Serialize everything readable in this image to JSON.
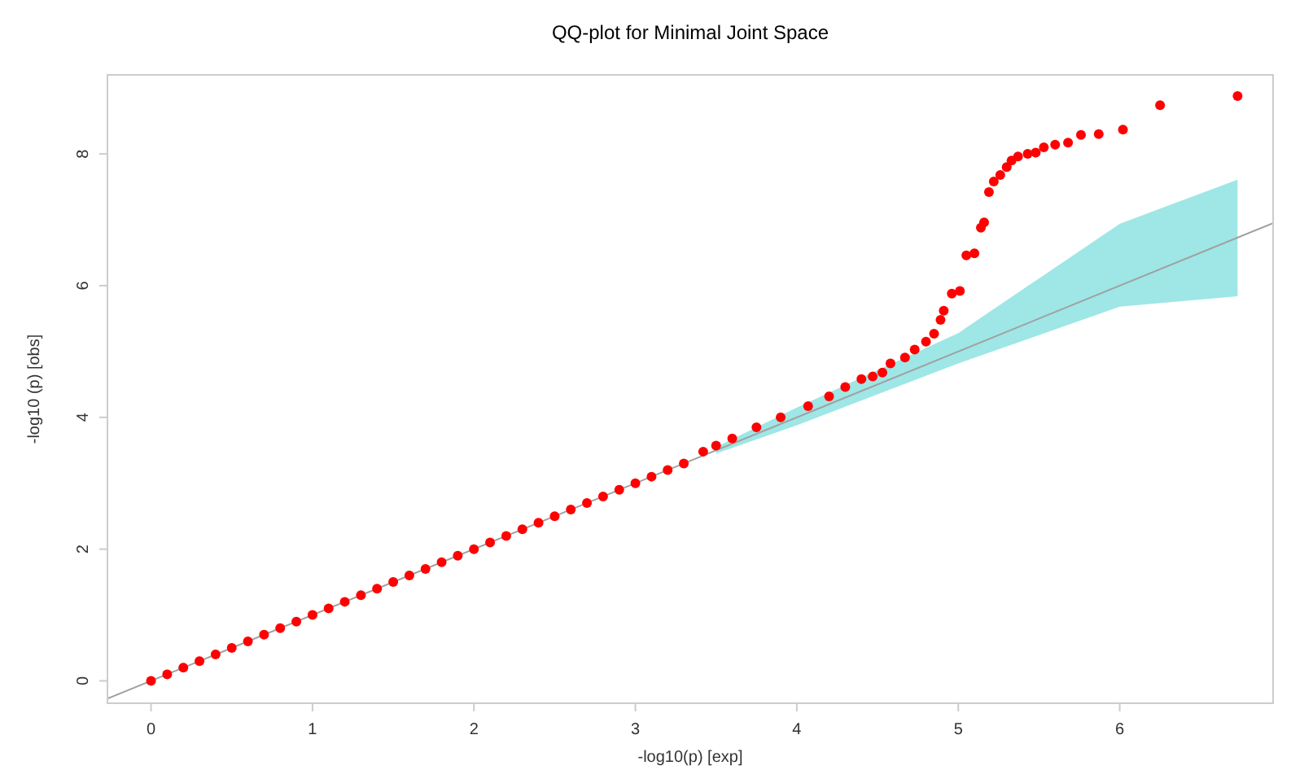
{
  "chart_data": {
    "type": "scatter",
    "title": "QQ-plot for Minimal Joint Space",
    "xlabel": "-log10(p) [exp]",
    "ylabel": "-log10 (p) [obs]",
    "xlim": [
      -0.27,
      6.95
    ],
    "ylim": [
      -0.34,
      9.2
    ],
    "xticks": [
      0,
      1,
      2,
      3,
      4,
      5,
      6
    ],
    "yticks": [
      0,
      2,
      4,
      6,
      8
    ],
    "grid": false,
    "marker": "circle",
    "series": [
      {
        "type": "area",
        "color": "#9fe6e6",
        "x": [
          3.5,
          4.0,
          5.0,
          6.0,
          6.73
        ],
        "values": [
          null,
          null,
          null,
          null,
          null
        ],
        "lower": [
          3.45,
          3.88,
          4.82,
          5.68,
          5.84
        ],
        "upper": [
          3.55,
          4.15,
          5.28,
          6.94,
          7.61
        ]
      },
      {
        "type": "line",
        "color": "#a0a0a0",
        "line_style": "solid",
        "marker": "none",
        "x": [
          -0.27,
          6.95
        ],
        "values": [
          -0.27,
          6.95
        ]
      },
      {
        "color": "#ff0000",
        "x": [
          0,
          0.1,
          0.2,
          0.3,
          0.4,
          0.5,
          0.6,
          0.7,
          0.8,
          0.9,
          1.0,
          1.1,
          1.2,
          1.3,
          1.4,
          1.5,
          1.6,
          1.7,
          1.8,
          1.9,
          2.0,
          2.1,
          2.2,
          2.3,
          2.4,
          2.5,
          2.6,
          2.7,
          2.8,
          2.9,
          3.0,
          3.1,
          3.2,
          3.3,
          3.42,
          3.5,
          3.6,
          3.75,
          3.9,
          4.07,
          4.2,
          4.3,
          4.4,
          4.47,
          4.53,
          4.58,
          4.67,
          4.73,
          4.8,
          4.85,
          4.89,
          4.91,
          4.96,
          5.01,
          5.05,
          5.1,
          5.14,
          5.16,
          5.19,
          5.22,
          5.26,
          5.3,
          5.33,
          5.37,
          5.43,
          5.48,
          5.53,
          5.6,
          5.68,
          5.76,
          5.87,
          6.02,
          6.25,
          6.73
        ],
        "values": [
          0,
          0.1,
          0.2,
          0.3,
          0.4,
          0.5,
          0.6,
          0.7,
          0.8,
          0.9,
          1.0,
          1.1,
          1.2,
          1.3,
          1.4,
          1.5,
          1.6,
          1.7,
          1.8,
          1.9,
          2.0,
          2.1,
          2.2,
          2.3,
          2.4,
          2.5,
          2.6,
          2.7,
          2.8,
          2.9,
          3.0,
          3.1,
          3.2,
          3.3,
          3.48,
          3.57,
          3.68,
          3.85,
          4.0,
          4.17,
          4.32,
          4.46,
          4.58,
          4.62,
          4.68,
          4.82,
          4.91,
          5.03,
          5.15,
          5.27,
          5.48,
          5.62,
          5.88,
          5.92,
          6.46,
          6.49,
          6.88,
          6.96,
          7.42,
          7.58,
          7.68,
          7.8,
          7.9,
          7.96,
          8.0,
          8.02,
          8.1,
          8.14,
          8.17,
          8.29,
          8.3,
          8.37,
          8.74,
          8.88
        ]
      }
    ]
  }
}
